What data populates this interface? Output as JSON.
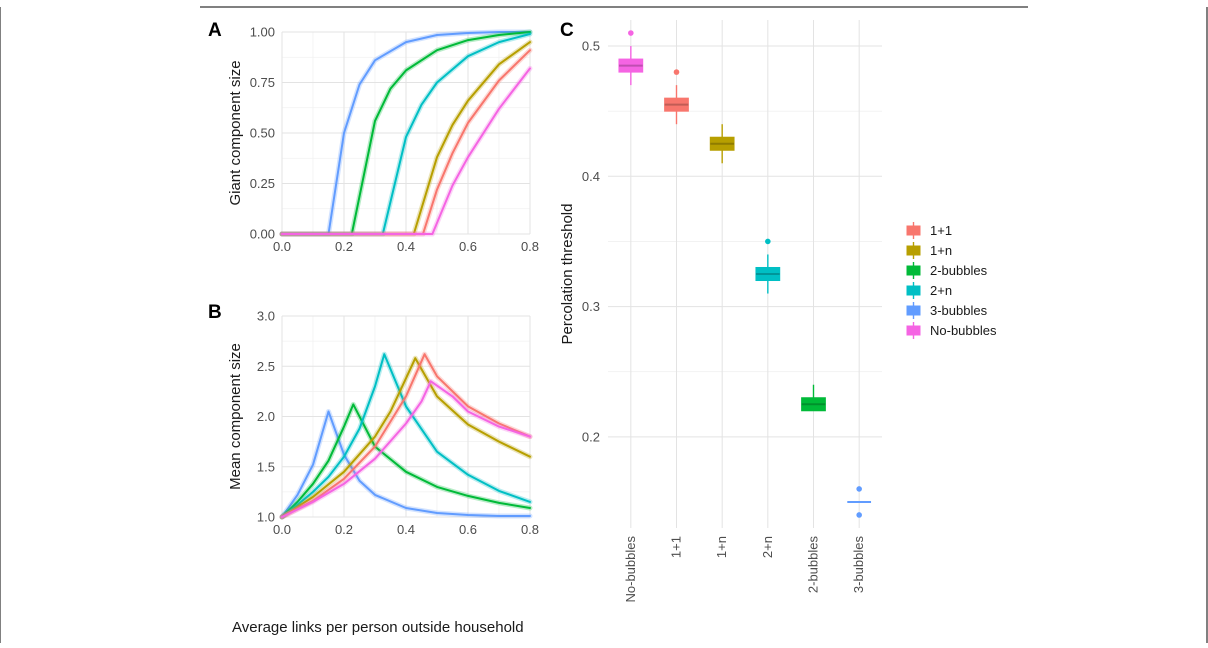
{
  "colors": {
    "1+1": "#F8766D",
    "1+n": "#B79F00",
    "2-bubbles": "#00BA38",
    "2+n": "#00BFC4",
    "3-bubbles": "#619CFF",
    "No-bubbles": "#F564E3"
  },
  "shared_xlabel": "Average links per person outside household",
  "legend": {
    "entries": [
      "1+1",
      "1+n",
      "2-bubbles",
      "2+n",
      "3-bubbles",
      "No-bubbles"
    ],
    "placement": "right"
  },
  "chart_data": [
    {
      "panel": "A",
      "type": "line",
      "xlabel": "",
      "ylabel": "Giant component size",
      "xlim": [
        0,
        0.8
      ],
      "ylim": [
        0,
        1
      ],
      "xticks": [
        "0.0",
        "0.2",
        "0.4",
        "0.6",
        "0.8"
      ],
      "yticks": [
        "0.00",
        "0.25",
        "0.50",
        "0.75",
        "1.00"
      ],
      "grid": true,
      "series": [
        {
          "name": "3-bubbles",
          "threshold": 0.15,
          "x": [
            0,
            0.15,
            0.2,
            0.25,
            0.3,
            0.4,
            0.5,
            0.6,
            0.7,
            0.8
          ],
          "values": [
            0,
            0,
            0.5,
            0.74,
            0.86,
            0.95,
            0.985,
            0.995,
            1.0,
            1.0
          ]
        },
        {
          "name": "2-bubbles",
          "threshold": 0.225,
          "x": [
            0,
            0.225,
            0.3,
            0.35,
            0.4,
            0.5,
            0.6,
            0.7,
            0.8
          ],
          "values": [
            0,
            0,
            0.56,
            0.72,
            0.81,
            0.91,
            0.96,
            0.985,
            1.0
          ]
        },
        {
          "name": "2+n",
          "threshold": 0.325,
          "x": [
            0,
            0.325,
            0.4,
            0.45,
            0.5,
            0.6,
            0.7,
            0.8
          ],
          "values": [
            0,
            0,
            0.48,
            0.64,
            0.75,
            0.88,
            0.95,
            0.99
          ]
        },
        {
          "name": "1+n",
          "threshold": 0.425,
          "x": [
            0,
            0.425,
            0.5,
            0.55,
            0.6,
            0.7,
            0.8
          ],
          "values": [
            0,
            0,
            0.38,
            0.54,
            0.66,
            0.84,
            0.95
          ]
        },
        {
          "name": "1+1",
          "threshold": 0.455,
          "x": [
            0,
            0.455,
            0.5,
            0.55,
            0.6,
            0.7,
            0.8
          ],
          "values": [
            0,
            0,
            0.22,
            0.4,
            0.55,
            0.76,
            0.91
          ]
        },
        {
          "name": "No-bubbles",
          "threshold": 0.485,
          "x": [
            0,
            0.485,
            0.55,
            0.6,
            0.7,
            0.8
          ],
          "values": [
            0,
            0,
            0.24,
            0.38,
            0.62,
            0.82
          ]
        }
      ]
    },
    {
      "panel": "B",
      "type": "line",
      "xlabel": "",
      "ylabel": "Mean component size",
      "xlim": [
        0,
        0.8
      ],
      "ylim": [
        1,
        3
      ],
      "xticks": [
        "0.0",
        "0.2",
        "0.4",
        "0.6",
        "0.8"
      ],
      "yticks": [
        "1.0",
        "1.5",
        "2.0",
        "2.5",
        "3.0"
      ],
      "grid": true,
      "series": [
        {
          "name": "3-bubbles",
          "x": [
            0,
            0.05,
            0.1,
            0.15,
            0.2,
            0.25,
            0.3,
            0.4,
            0.5,
            0.6,
            0.7,
            0.8
          ],
          "values": [
            1.0,
            1.22,
            1.52,
            2.05,
            1.62,
            1.36,
            1.22,
            1.09,
            1.04,
            1.02,
            1.01,
            1.01
          ]
        },
        {
          "name": "2-bubbles",
          "x": [
            0,
            0.05,
            0.1,
            0.15,
            0.2,
            0.23,
            0.3,
            0.4,
            0.5,
            0.6,
            0.7,
            0.8
          ],
          "values": [
            1.0,
            1.15,
            1.33,
            1.56,
            1.9,
            2.12,
            1.7,
            1.45,
            1.3,
            1.21,
            1.14,
            1.09
          ]
        },
        {
          "name": "2+n",
          "x": [
            0,
            0.05,
            0.1,
            0.15,
            0.2,
            0.25,
            0.3,
            0.33,
            0.4,
            0.5,
            0.6,
            0.7,
            0.8
          ],
          "values": [
            1.0,
            1.12,
            1.25,
            1.4,
            1.6,
            1.88,
            2.3,
            2.62,
            2.1,
            1.65,
            1.42,
            1.26,
            1.15
          ]
        },
        {
          "name": "1+n",
          "x": [
            0,
            0.1,
            0.2,
            0.3,
            0.35,
            0.4,
            0.43,
            0.5,
            0.6,
            0.7,
            0.8
          ],
          "values": [
            1.0,
            1.2,
            1.45,
            1.8,
            2.05,
            2.38,
            2.58,
            2.2,
            1.92,
            1.75,
            1.6
          ]
        },
        {
          "name": "1+1",
          "x": [
            0,
            0.1,
            0.2,
            0.3,
            0.4,
            0.46,
            0.5,
            0.6,
            0.7,
            0.8
          ],
          "values": [
            1.0,
            1.16,
            1.38,
            1.7,
            2.2,
            2.62,
            2.4,
            2.1,
            1.93,
            1.8
          ]
        },
        {
          "name": "No-bubbles",
          "x": [
            0,
            0.1,
            0.2,
            0.3,
            0.4,
            0.45,
            0.48,
            0.55,
            0.6,
            0.7,
            0.8
          ],
          "values": [
            1.0,
            1.15,
            1.33,
            1.58,
            1.93,
            2.15,
            2.35,
            2.2,
            2.05,
            1.9,
            1.8
          ]
        }
      ]
    },
    {
      "panel": "C",
      "type": "box",
      "xlabel": "",
      "ylabel": "Percolation threshold",
      "ylim": [
        0.13,
        0.52
      ],
      "yticks": [
        "0.2",
        "0.3",
        "0.4",
        "0.5"
      ],
      "grid": true,
      "categories": [
        "No-bubbles",
        "1+1",
        "1+n",
        "2+n",
        "2-bubbles",
        "3-bubbles"
      ],
      "boxes": [
        {
          "name": "No-bubbles",
          "min": 0.47,
          "q1": 0.48,
          "median": 0.485,
          "q3": 0.49,
          "max": 0.5,
          "outliers": [
            0.51
          ]
        },
        {
          "name": "1+1",
          "min": 0.44,
          "q1": 0.45,
          "median": 0.455,
          "q3": 0.46,
          "max": 0.47,
          "outliers": [
            0.48
          ]
        },
        {
          "name": "1+n",
          "min": 0.41,
          "q1": 0.42,
          "median": 0.425,
          "q3": 0.43,
          "max": 0.44,
          "outliers": []
        },
        {
          "name": "2+n",
          "min": 0.31,
          "q1": 0.32,
          "median": 0.325,
          "q3": 0.33,
          "max": 0.34,
          "outliers": [
            0.35
          ]
        },
        {
          "name": "2-bubbles",
          "min": 0.22,
          "q1": 0.22,
          "median": 0.225,
          "q3": 0.23,
          "max": 0.24,
          "outliers": []
        },
        {
          "name": "3-bubbles",
          "min": 0.15,
          "q1": 0.15,
          "median": 0.15,
          "q3": 0.15,
          "max": 0.15,
          "outliers": [
            0.16,
            0.14
          ]
        }
      ]
    }
  ],
  "panel_labels": [
    "A",
    "B",
    "C"
  ]
}
